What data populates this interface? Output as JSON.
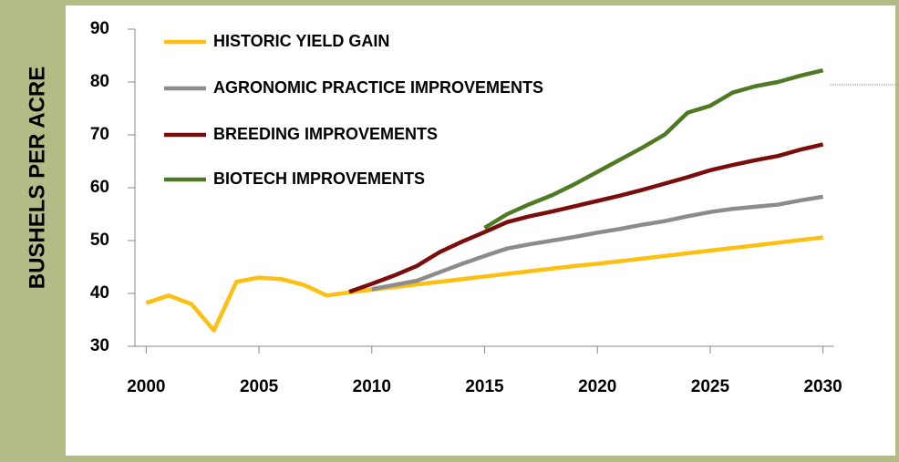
{
  "chart_data": {
    "type": "line",
    "ylabel": "BUSHELS PER ACRE",
    "x": [
      2000,
      2001,
      2002,
      2003,
      2004,
      2005,
      2006,
      2007,
      2008,
      2009,
      2010,
      2011,
      2012,
      2013,
      2014,
      2015,
      2016,
      2017,
      2018,
      2019,
      2020,
      2021,
      2022,
      2023,
      2024,
      2025,
      2026,
      2027,
      2028,
      2029,
      2030
    ],
    "xlim": [
      1999.5,
      2030.5
    ],
    "xticks": [
      2000,
      2005,
      2010,
      2015,
      2020,
      2025,
      2030
    ],
    "ylim": [
      30,
      90
    ],
    "yticks": [
      30,
      40,
      50,
      60,
      70,
      80,
      90
    ],
    "legend": "upper left",
    "series": [
      {
        "name": "HISTORIC YIELD GAIN",
        "color": "#fcbf12",
        "values": [
          38.2,
          39.6,
          38.0,
          33.0,
          42.2,
          43.0,
          42.7,
          41.6,
          39.6,
          40.2,
          40.7,
          41.2,
          41.7,
          42.2,
          42.7,
          43.2,
          43.7,
          44.2,
          44.7,
          45.2,
          45.6,
          46.1,
          46.6,
          47.1,
          47.6,
          48.1,
          48.6,
          49.1,
          49.6,
          50.1,
          50.6
        ]
      },
      {
        "name": "AGRONOMIC PRACTICE IMPROVEMENTS",
        "color": "#8c8c8c",
        "values": [
          null,
          null,
          null,
          null,
          null,
          null,
          null,
          null,
          null,
          null,
          40.8,
          41.6,
          42.4,
          44.0,
          45.6,
          47.1,
          48.5,
          49.3,
          50.0,
          50.7,
          51.5,
          52.2,
          53.0,
          53.7,
          54.6,
          55.4,
          56.0,
          56.4,
          56.8,
          57.6,
          58.3
        ]
      },
      {
        "name": "BREEDING IMPROVEMENTS",
        "color": "#7b0c0c",
        "values": [
          null,
          null,
          null,
          null,
          null,
          null,
          null,
          null,
          null,
          40.3,
          41.8,
          43.4,
          45.2,
          47.8,
          49.8,
          51.6,
          53.5,
          54.6,
          55.5,
          56.5,
          57.5,
          58.5,
          59.6,
          60.8,
          62.0,
          63.3,
          64.3,
          65.2,
          66.0,
          67.2,
          68.2
        ]
      },
      {
        "name": "BIOTECH IMPROVEMENTS",
        "color": "#4e7a24",
        "values": [
          null,
          null,
          null,
          null,
          null,
          null,
          null,
          null,
          null,
          null,
          null,
          null,
          null,
          null,
          null,
          52.4,
          55.0,
          56.9,
          58.6,
          60.7,
          63.0,
          65.3,
          67.6,
          70.1,
          74.2,
          75.5,
          78.0,
          79.2,
          80.0,
          81.2,
          82.2
        ]
      }
    ]
  }
}
